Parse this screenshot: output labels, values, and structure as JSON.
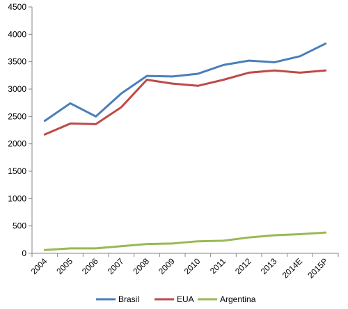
{
  "chart_data": {
    "type": "line",
    "title": "",
    "xlabel": "",
    "ylabel": "",
    "categories": [
      "2004",
      "2005",
      "2006",
      "2007",
      "2008",
      "2009",
      "2010",
      "2011",
      "2012",
      "2013",
      "2014E",
      "2015P"
    ],
    "ylim": [
      0,
      4500
    ],
    "yticks": [
      0,
      500,
      1000,
      1500,
      2000,
      2500,
      3000,
      3500,
      4000,
      4500
    ],
    "grid": false,
    "legend": "bottom",
    "series": [
      {
        "name": "Brasil",
        "color": "#4a7ebb",
        "values": [
          2420,
          2740,
          2500,
          2920,
          3240,
          3230,
          3280,
          3440,
          3520,
          3490,
          3600,
          3830
        ]
      },
      {
        "name": "EUA",
        "color": "#be4b48",
        "values": [
          2170,
          2370,
          2360,
          2670,
          3170,
          3100,
          3060,
          3170,
          3300,
          3340,
          3300,
          3340
        ]
      },
      {
        "name": "Argentina",
        "color": "#98b954",
        "values": [
          60,
          90,
          90,
          130,
          170,
          180,
          220,
          230,
          290,
          330,
          350,
          380
        ]
      }
    ]
  }
}
